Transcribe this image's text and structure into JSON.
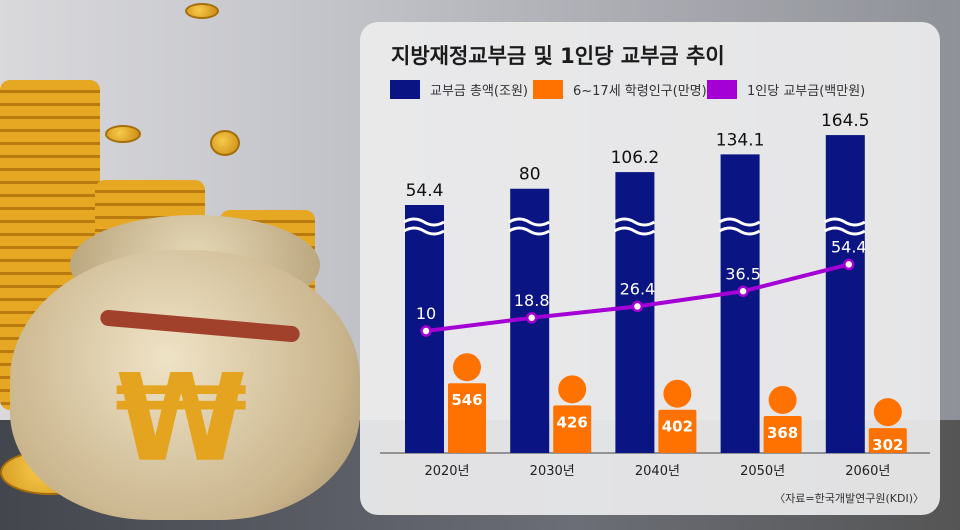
{
  "title": "지방재정교부금 및 1인당 교부금 추이",
  "legend": [
    {
      "label": "교부금 총액(조원)",
      "color": "#0a1482"
    },
    {
      "label": "6~17세 학령인구(만명)",
      "color": "#ff7200"
    },
    {
      "label": "1인당 교부금(백만원)",
      "color": "#a400d6"
    }
  ],
  "source": "〈자료=한국개발연구원(KDI)〉",
  "illustration_symbol": "₩",
  "chart_data": {
    "type": "bar",
    "title": "지방재정교부금 및 1인당 교부금 추이",
    "categories": [
      "2020년",
      "2030년",
      "2040년",
      "2050년",
      "2060년"
    ],
    "series": [
      {
        "name": "교부금 총액(조원)",
        "type": "bar",
        "values": [
          54.4,
          80,
          106.2,
          134.1,
          164.5
        ],
        "labels": [
          "54.4",
          "80",
          "106.2",
          "134.1",
          "164.5"
        ]
      },
      {
        "name": "6~17세 학령인구(만명)",
        "type": "bar",
        "values": [
          546,
          426,
          402,
          368,
          302
        ],
        "labels": [
          "546",
          "426",
          "402",
          "368",
          "302"
        ]
      },
      {
        "name": "1인당 교부금(백만원)",
        "type": "line",
        "values": [
          10,
          18.8,
          26.4,
          36.5,
          54.4
        ],
        "labels": [
          "10",
          "18.8",
          "26.4",
          "36.5",
          "54.4"
        ]
      }
    ],
    "axis_break": true,
    "grid": false,
    "legend_position": "top"
  }
}
